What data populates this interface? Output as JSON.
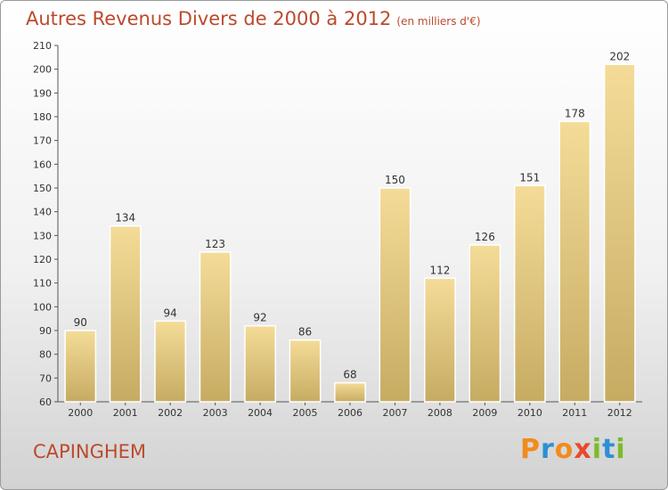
{
  "header": {
    "title": "Autres Revenus Divers de 2000 à 2012",
    "unit": "(en milliers d'€)"
  },
  "footer": {
    "town": "CAPINGHEM",
    "logo": "Proxiti",
    "logo_colors": [
      "#f08c1e",
      "#2d8fd5",
      "#f08c1e",
      "#e84a2a",
      "#7cbb2a",
      "#2d8fd5",
      "#7cbb2a"
    ]
  },
  "colors": {
    "title": "#bb4a2c",
    "bar_light": "#f4dc98",
    "bar_dark": "#c6ab62"
  },
  "chart_data": {
    "type": "bar",
    "categories": [
      "2000",
      "2001",
      "2002",
      "2003",
      "2004",
      "2005",
      "2006",
      "2007",
      "2008",
      "2009",
      "2010",
      "2011",
      "2012"
    ],
    "values": [
      90,
      134,
      94,
      123,
      92,
      86,
      68,
      150,
      112,
      126,
      151,
      178,
      202
    ],
    "ylim": [
      60,
      210
    ],
    "yticks": [
      60,
      70,
      80,
      90,
      100,
      110,
      120,
      130,
      140,
      150,
      160,
      170,
      180,
      190,
      200,
      210
    ],
    "grid": false,
    "data_labels": true
  }
}
